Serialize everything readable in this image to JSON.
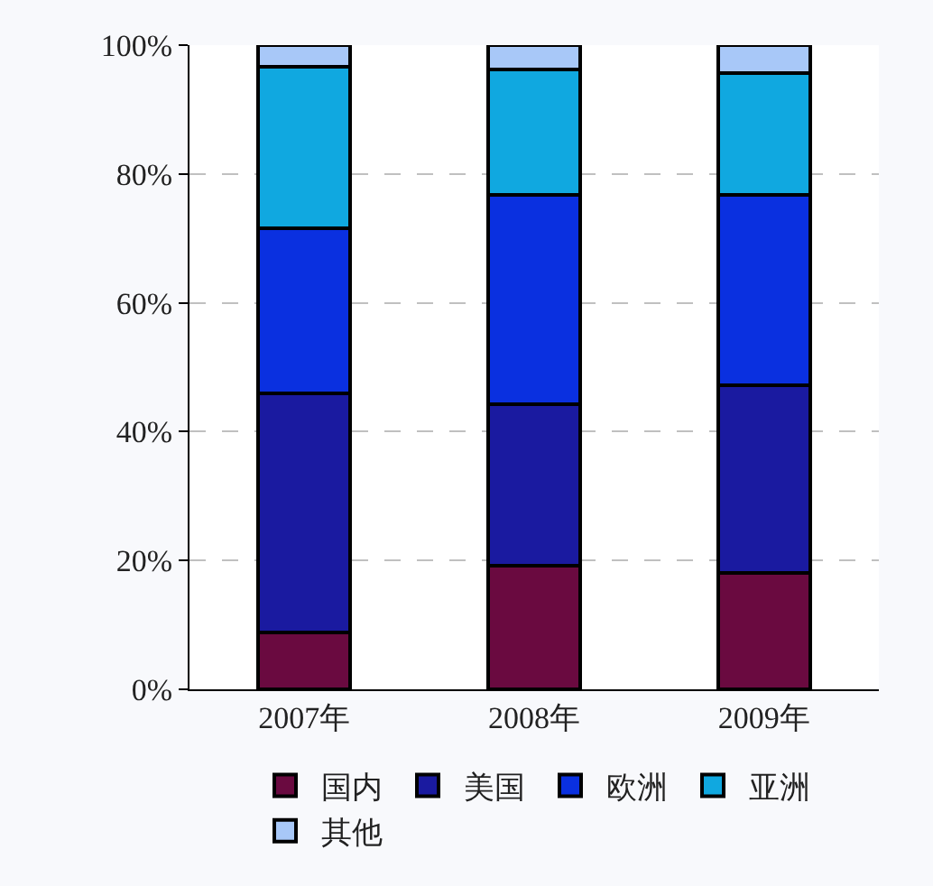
{
  "chart_data": {
    "type": "bar",
    "stacked": true,
    "categories": [
      "2007年",
      "2008年",
      "2009年"
    ],
    "series": [
      {
        "name": "国内",
        "color": "#6a0a40",
        "values": [
          8.8,
          19.2,
          18.0
        ]
      },
      {
        "name": "美国",
        "color": "#1a1aa0",
        "values": [
          37.2,
          25.1,
          29.2
        ]
      },
      {
        "name": "欧洲",
        "color": "#0a30e0",
        "values": [
          25.6,
          32.5,
          29.6
        ]
      },
      {
        "name": "亚洲",
        "color": "#10a8e0",
        "values": [
          25.1,
          19.4,
          18.8
        ]
      },
      {
        "name": "其他",
        "color": "#a8c8f8",
        "values": [
          3.3,
          3.8,
          4.4
        ]
      }
    ],
    "ylim": [
      0,
      100
    ],
    "yticks": [
      {
        "value": 0,
        "label": "0%"
      },
      {
        "value": 20,
        "label": "20%"
      },
      {
        "value": 40,
        "label": "40%"
      },
      {
        "value": 60,
        "label": "60%"
      },
      {
        "value": 80,
        "label": "80%"
      },
      {
        "value": 100,
        "label": "100%"
      }
    ],
    "grid": "y",
    "legend": "bottom"
  }
}
